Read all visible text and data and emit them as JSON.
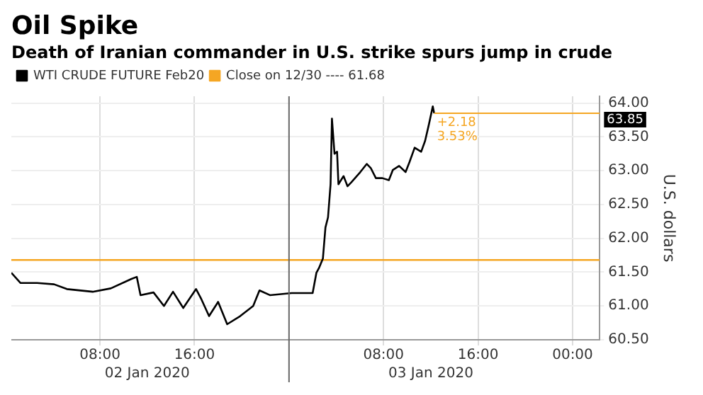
{
  "chart_data": {
    "type": "line",
    "title": "Oil Spike",
    "subtitle": "Death of Iranian commander in U.S. strike spurs jump in crude",
    "ylabel": "U.S. dollars",
    "xlim": [
      "2020-01-02T00:30",
      "2020-01-04T02:18"
    ],
    "xticks": [
      {
        "value": "2020-01-02T08:00",
        "label": "08:00"
      },
      {
        "value": "2020-01-02T16:00",
        "label": "16:00"
      },
      {
        "value": "2020-01-03T08:00",
        "label": "08:00"
      },
      {
        "value": "2020-01-03T16:00",
        "label": "16:00"
      },
      {
        "value": "2020-01-04T00:00",
        "label": "00:00"
      }
    ],
    "x2lim": [
      "2020-01-02T00:30",
      "2020-01-04T02:18"
    ],
    "x2ticks": [
      {
        "value": "2020-01-02T12:00",
        "label": "02 Jan 2020"
      },
      {
        "value": "2020-01-03T12:00",
        "label": "03 Jan 2020"
      }
    ],
    "ylim": [
      60.5,
      64.1
    ],
    "yticks": [
      {
        "value": 60.5,
        "label": "60.50"
      },
      {
        "value": 61,
        "label": "61.00"
      },
      {
        "value": 61.5,
        "label": "61.50"
      },
      {
        "value": 62,
        "label": "62.00"
      },
      {
        "value": 62.5,
        "label": "62.50"
      },
      {
        "value": 63,
        "label": "63.00"
      },
      {
        "value": 63.5,
        "label": "63.50"
      },
      {
        "value": 64,
        "label": "64.00"
      }
    ],
    "grid": true,
    "legend": "top left",
    "marker": "none",
    "line_style": "solid",
    "series": [
      {
        "name": "WTI CRUDE FUTURE Feb20",
        "color": "#000000",
        "x": [
          "2020-01-02T00:30",
          "2020-01-02T01:16",
          "2020-01-02T02:41",
          "2020-01-02T04:07",
          "2020-01-02T05:12",
          "2020-01-02T07:23",
          "2020-01-02T08:55",
          "2020-01-02T10:40",
          "2020-01-02T11:07",
          "2020-01-02T11:26",
          "2020-01-02T12:32",
          "2020-01-02T13:25",
          "2020-01-02T14:11",
          "2020-01-02T15:03",
          "2020-01-02T16:08",
          "2020-01-02T16:35",
          "2020-01-02T17:14",
          "2020-01-02T18:00",
          "2020-01-02T18:46",
          "2020-01-02T19:52",
          "2020-01-02T20:58",
          "2020-01-02T21:30",
          "2020-01-02T22:23",
          "2020-01-03T00:14",
          "2020-01-03T02:00",
          "2020-01-03T02:19",
          "2020-01-03T02:32",
          "2020-01-03T02:52",
          "2020-01-03T03:05",
          "2020-01-03T03:18",
          "2020-01-03T03:31",
          "2020-01-03T03:38",
          "2020-01-03T03:51",
          "2020-01-03T04:04",
          "2020-01-03T04:11",
          "2020-01-03T04:37",
          "2020-01-03T04:57",
          "2020-01-03T05:17",
          "2020-01-03T06:02",
          "2020-01-03T06:35",
          "2020-01-03T06:55",
          "2020-01-03T07:21",
          "2020-01-03T07:54",
          "2020-01-03T08:27",
          "2020-01-03T08:47",
          "2020-01-03T09:19",
          "2020-01-03T09:52",
          "2020-01-03T10:12",
          "2020-01-03T10:38",
          "2020-01-03T11:11",
          "2020-01-03T11:31",
          "2020-01-03T11:50",
          "2020-01-03T12:10",
          "2020-01-03T12:17"
        ],
        "values": [
          61.49,
          61.34,
          61.34,
          61.32,
          61.25,
          61.21,
          61.26,
          61.4,
          61.43,
          61.16,
          61.2,
          61.0,
          61.21,
          60.97,
          61.25,
          61.1,
          60.85,
          61.06,
          60.73,
          60.85,
          61.0,
          61.23,
          61.16,
          61.19,
          61.19,
          61.49,
          61.56,
          61.7,
          62.16,
          62.31,
          62.8,
          63.77,
          63.25,
          63.28,
          62.8,
          62.92,
          62.77,
          62.83,
          62.98,
          63.1,
          63.04,
          62.89,
          62.89,
          62.86,
          63.01,
          63.07,
          62.98,
          63.13,
          63.34,
          63.28,
          63.44,
          63.68,
          63.95,
          63.85
        ]
      },
      {
        "name": "Close on 12/30 ---- 61.68",
        "color": "#f5a623",
        "x": [
          "2020-01-02T00:30",
          "2020-01-04T02:18"
        ],
        "values": [
          61.68,
          61.68
        ]
      }
    ],
    "ref_lines": [
      {
        "axis": "y",
        "value": 63.85,
        "label": "63.85",
        "color": "#f5a623"
      },
      {
        "axis": "x",
        "value": "2020-01-03T00:00",
        "color": "#666666"
      }
    ],
    "annotations": [
      {
        "text": "+2.18\n3.53%",
        "x": "2020-01-03T12:17",
        "y": 63.85
      }
    ]
  }
}
